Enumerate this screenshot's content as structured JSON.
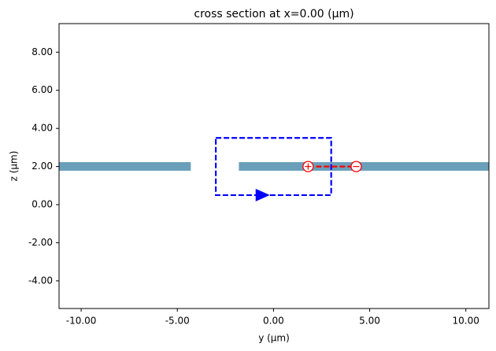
{
  "chart_data": {
    "type": "structure",
    "title": "cross section at x=0.00 (μm)",
    "x_label": "y (μm)",
    "y_label": "z (μm)",
    "xlim": [
      -11.15,
      11.2
    ],
    "ylim": [
      -5.45,
      9.5
    ],
    "xticks": [
      {
        "value": -10,
        "label": "-10.00"
      },
      {
        "value": -5,
        "label": "-5.00"
      },
      {
        "value": 0,
        "label": "0.00"
      },
      {
        "value": 5,
        "label": "5.00"
      },
      {
        "value": 10,
        "label": "10.00"
      }
    ],
    "yticks": [
      {
        "value": -4,
        "label": "-4.00"
      },
      {
        "value": -2,
        "label": "-2.00"
      },
      {
        "value": 0,
        "label": "0.00"
      },
      {
        "value": 2,
        "label": "2.00"
      },
      {
        "value": 4,
        "label": "4.00"
      },
      {
        "value": 6,
        "label": "6.00"
      },
      {
        "value": 8,
        "label": "8.00"
      }
    ],
    "structure_color": "#6a9fba",
    "structures": [
      {
        "y": [
          -11.2,
          -4.3
        ],
        "z": [
          1.78,
          2.23
        ]
      },
      {
        "y": [
          -1.8,
          11.2
        ],
        "z": [
          1.78,
          2.23
        ]
      }
    ],
    "current_integral": {
      "color": "#0000ff",
      "y": [
        -3.0,
        3.0
      ],
      "z": [
        0.5,
        3.5
      ]
    },
    "voltage_integral": {
      "color": "#ff0000",
      "y": [
        1.8,
        4.3
      ],
      "z": [
        2,
        2
      ]
    }
  }
}
